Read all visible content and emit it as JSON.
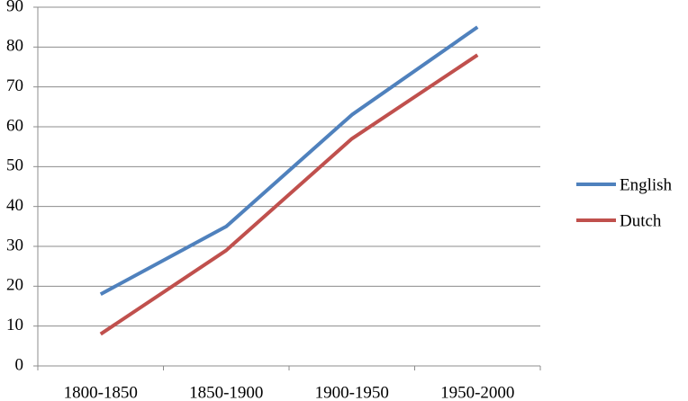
{
  "chart_data": {
    "type": "line",
    "categories": [
      "1800-1850",
      "1850-1900",
      "1900-1950",
      "1950-2000"
    ],
    "series": [
      {
        "name": "English",
        "color": "#4f81bd",
        "values": [
          18,
          35,
          63,
          85
        ]
      },
      {
        "name": "Dutch",
        "color": "#c0504d",
        "values": [
          8,
          29,
          57,
          78
        ]
      }
    ],
    "ylim": [
      0,
      90
    ],
    "yticks": [
      0,
      10,
      20,
      30,
      40,
      50,
      60,
      70,
      80,
      90
    ],
    "grid": true,
    "legend": "right"
  }
}
